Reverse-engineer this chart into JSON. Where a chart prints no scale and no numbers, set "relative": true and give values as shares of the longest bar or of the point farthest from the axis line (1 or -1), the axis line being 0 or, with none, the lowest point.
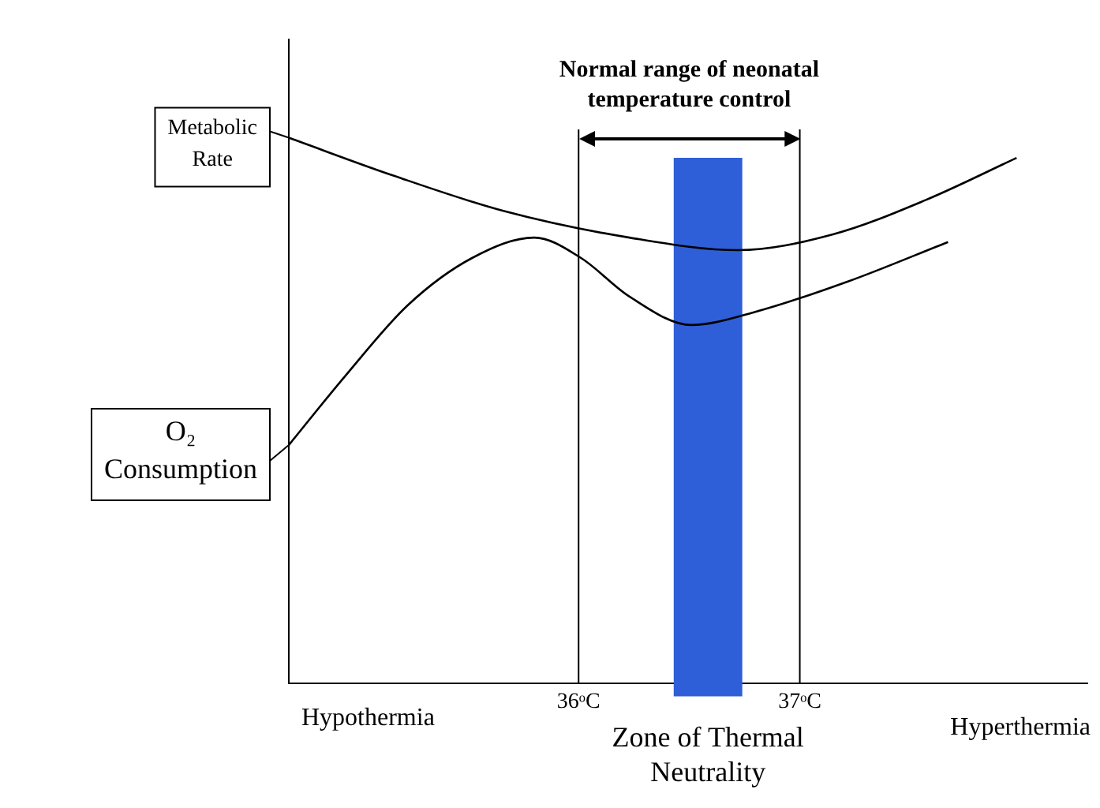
{
  "chart_data": {
    "type": "line",
    "title": "Normal range of neonatal temperature control",
    "relative": true,
    "xlim": [
      34.69,
      38.3
    ],
    "xticks": [
      {
        "value": 36,
        "label": "36ᵒC"
      },
      {
        "value": 37,
        "label": "37ᵒC"
      }
    ],
    "grid": false,
    "legend": "left",
    "marker": "none",
    "line_style": "solid",
    "series": [
      {
        "name": "Metabolic Rate",
        "color": "#000000",
        "x": [
          34.69,
          35.16,
          35.66,
          36.23,
          36.72,
          37.15,
          37.57,
          37.98
        ],
        "values": [
          1,
          0.931,
          0.866,
          0.817,
          0.794,
          0.823,
          0.886,
          0.963
        ]
      },
      {
        "name": "O₂ Consumption",
        "color": "#000000",
        "x": [
          34.69,
          34.95,
          35.23,
          35.52,
          35.8,
          36.01,
          36.23,
          36.51,
          36.79,
          37.22,
          37.67
        ],
        "values": [
          0.437,
          0.566,
          0.694,
          0.78,
          0.817,
          0.78,
          0.709,
          0.657,
          0.68,
          0.737,
          0.809
        ]
      }
    ],
    "ref_lines": [
      {
        "axis": "x",
        "value": 36
      },
      {
        "axis": "x",
        "value": 37
      }
    ],
    "bands": [
      {
        "axis": "x",
        "from": 36.43,
        "to": 36.74,
        "label": "Zone of Thermal Neutrality",
        "color": "#2f5fd8"
      }
    ],
    "annotations": [
      "Hypothermia",
      "Hyperthermia"
    ]
  }
}
